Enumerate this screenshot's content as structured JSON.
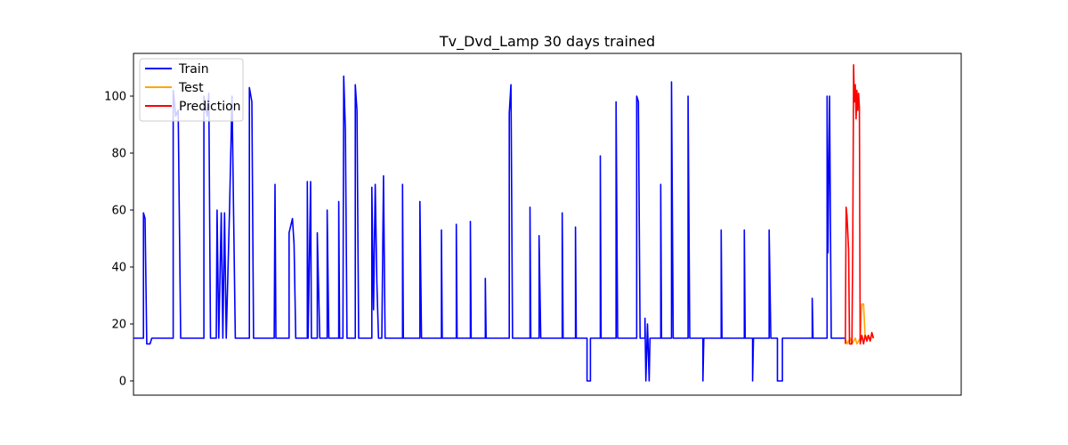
{
  "chart_data": {
    "type": "line",
    "title": "Tv_Dvd_Lamp 30 days trained",
    "xlabel": "",
    "ylabel": "",
    "x_ticks_visible": false,
    "xlim": [
      0,
      1000
    ],
    "ylim": [
      -5,
      115
    ],
    "y_ticks": [
      0,
      20,
      40,
      60,
      80,
      100
    ],
    "grid": false,
    "legend_position": "top-left",
    "series": [
      {
        "name": "Train",
        "color": "#0000ff",
        "points": [
          [
            0,
            15
          ],
          [
            12,
            15
          ],
          [
            12,
            59
          ],
          [
            14,
            57
          ],
          [
            16,
            13
          ],
          [
            20,
            13
          ],
          [
            22,
            15
          ],
          [
            48,
            15
          ],
          [
            48,
            102
          ],
          [
            51,
            93
          ],
          [
            54,
            95
          ],
          [
            57,
            15
          ],
          [
            68,
            15
          ],
          [
            85,
            15
          ],
          [
            85,
            100
          ],
          [
            89,
            93
          ],
          [
            91,
            101
          ],
          [
            93,
            15
          ],
          [
            100,
            15
          ],
          [
            101,
            60
          ],
          [
            103,
            15
          ],
          [
            106,
            59
          ],
          [
            108,
            15
          ],
          [
            110,
            59
          ],
          [
            112,
            15
          ],
          [
            116,
            60
          ],
          [
            119,
            100
          ],
          [
            121,
            58
          ],
          [
            123,
            15
          ],
          [
            130,
            15
          ],
          [
            140,
            15
          ],
          [
            140,
            103
          ],
          [
            143,
            98
          ],
          [
            145,
            15
          ],
          [
            152,
            15
          ],
          [
            162,
            15
          ],
          [
            170,
            15
          ],
          [
            171,
            69
          ],
          [
            172,
            15
          ],
          [
            180,
            15
          ],
          [
            188,
            15
          ],
          [
            188,
            52
          ],
          [
            192,
            57
          ],
          [
            194,
            48
          ],
          [
            196,
            15
          ],
          [
            200,
            15
          ],
          [
            210,
            15
          ],
          [
            210,
            70
          ],
          [
            211,
            15
          ],
          [
            214,
            70
          ],
          [
            215,
            15
          ],
          [
            222,
            15
          ],
          [
            222,
            52
          ],
          [
            225,
            15
          ],
          [
            230,
            15
          ],
          [
            234,
            15
          ],
          [
            234,
            60
          ],
          [
            236,
            15
          ],
          [
            240,
            15
          ],
          [
            248,
            15
          ],
          [
            248,
            63
          ],
          [
            249,
            15
          ],
          [
            253,
            15
          ],
          [
            254,
            107
          ],
          [
            256,
            88
          ],
          [
            258,
            15
          ],
          [
            265,
            15
          ],
          [
            268,
            15
          ],
          [
            268,
            104
          ],
          [
            270,
            95
          ],
          [
            272,
            15
          ],
          [
            276,
            15
          ],
          [
            288,
            15
          ],
          [
            288,
            68
          ],
          [
            290,
            25
          ],
          [
            292,
            69
          ],
          [
            294,
            35
          ],
          [
            296,
            15
          ],
          [
            300,
            15
          ],
          [
            302,
            72
          ],
          [
            304,
            15
          ],
          [
            310,
            15
          ],
          [
            325,
            15
          ],
          [
            325,
            69
          ],
          [
            326,
            15
          ],
          [
            338,
            15
          ],
          [
            346,
            15
          ],
          [
            346,
            63
          ],
          [
            348,
            15
          ],
          [
            358,
            15
          ],
          [
            372,
            15
          ],
          [
            372,
            53
          ],
          [
            373,
            15
          ],
          [
            378,
            15
          ],
          [
            390,
            15
          ],
          [
            390,
            55
          ],
          [
            391,
            15
          ],
          [
            398,
            15
          ],
          [
            407,
            15
          ],
          [
            407,
            56
          ],
          [
            408,
            15
          ],
          [
            414,
            15
          ],
          [
            425,
            15
          ],
          [
            425,
            36
          ],
          [
            426,
            15
          ],
          [
            436,
            15
          ],
          [
            454,
            15
          ],
          [
            454,
            94
          ],
          [
            456,
            104
          ],
          [
            458,
            15
          ],
          [
            470,
            15
          ],
          [
            479,
            15
          ],
          [
            479,
            61
          ],
          [
            480,
            15
          ],
          [
            486,
            15
          ],
          [
            490,
            15
          ],
          [
            490,
            51
          ],
          [
            492,
            15
          ],
          [
            504,
            15
          ],
          [
            518,
            15
          ],
          [
            518,
            59
          ],
          [
            519,
            15
          ],
          [
            524,
            15
          ],
          [
            534,
            15
          ],
          [
            534,
            54
          ],
          [
            535,
            15
          ],
          [
            548,
            15
          ],
          [
            548,
            0
          ],
          [
            552,
            0
          ],
          [
            552,
            15
          ],
          [
            564,
            15
          ],
          [
            564,
            79
          ],
          [
            565,
            15
          ],
          [
            570,
            15
          ],
          [
            583,
            15
          ],
          [
            583,
            98
          ],
          [
            585,
            15
          ],
          [
            596,
            15
          ],
          [
            608,
            15
          ],
          [
            608,
            100
          ],
          [
            610,
            98
          ],
          [
            612,
            15
          ],
          [
            618,
            15
          ],
          [
            618,
            22
          ],
          [
            619,
            0
          ],
          [
            621,
            20
          ],
          [
            623,
            0
          ],
          [
            624,
            15
          ],
          [
            637,
            15
          ],
          [
            637,
            69
          ],
          [
            638,
            15
          ],
          [
            645,
            15
          ],
          [
            650,
            15
          ],
          [
            650,
            105
          ],
          [
            652,
            15
          ],
          [
            660,
            15
          ],
          [
            670,
            15
          ],
          [
            670,
            100
          ],
          [
            672,
            15
          ],
          [
            678,
            15
          ],
          [
            688,
            15
          ],
          [
            688,
            0
          ],
          [
            689,
            15
          ],
          [
            700,
            15
          ],
          [
            710,
            15
          ],
          [
            710,
            53
          ],
          [
            711,
            15
          ],
          [
            720,
            15
          ],
          [
            738,
            15
          ],
          [
            738,
            53
          ],
          [
            739,
            15
          ],
          [
            745,
            15
          ],
          [
            748,
            15
          ],
          [
            748,
            0
          ],
          [
            749,
            15
          ],
          [
            764,
            15
          ],
          [
            768,
            15
          ],
          [
            768,
            53
          ],
          [
            770,
            15
          ],
          [
            778,
            15
          ],
          [
            778,
            0
          ],
          [
            784,
            0
          ],
          [
            784,
            15
          ],
          [
            820,
            15
          ],
          [
            820,
            29
          ],
          [
            821,
            15
          ],
          [
            833,
            15
          ],
          [
            838,
            15
          ],
          [
            838,
            100
          ],
          [
            839,
            45
          ],
          [
            841,
            100
          ],
          [
            843,
            15
          ],
          [
            860,
            15
          ]
        ]
      },
      {
        "name": "Test",
        "color": "#ffa500",
        "points": [
          [
            860,
            15
          ],
          [
            862,
            13
          ],
          [
            866,
            15
          ],
          [
            868,
            13
          ],
          [
            872,
            15
          ],
          [
            874,
            13
          ],
          [
            878,
            15
          ],
          [
            880,
            27
          ],
          [
            882,
            27
          ],
          [
            884,
            15
          ],
          [
            888,
            16
          ],
          [
            890,
            14
          ],
          [
            892,
            16
          ],
          [
            894,
            15
          ]
        ]
      },
      {
        "name": "Prediction",
        "color": "#ff0000",
        "points": [
          [
            860,
            13
          ],
          [
            861,
            61
          ],
          [
            862,
            58
          ],
          [
            863,
            52
          ],
          [
            864,
            46
          ],
          [
            865,
            13
          ],
          [
            867,
            13
          ],
          [
            868,
            13
          ],
          [
            869,
            50
          ],
          [
            870,
            111
          ],
          [
            871,
            98
          ],
          [
            872,
            104
          ],
          [
            873,
            92
          ],
          [
            874,
            102
          ],
          [
            875,
            95
          ],
          [
            876,
            101
          ],
          [
            877,
            96
          ],
          [
            878,
            13
          ],
          [
            880,
            16
          ],
          [
            882,
            13
          ],
          [
            884,
            16
          ],
          [
            886,
            14
          ],
          [
            888,
            16
          ],
          [
            890,
            14
          ],
          [
            892,
            17
          ],
          [
            894,
            15
          ]
        ]
      }
    ]
  }
}
